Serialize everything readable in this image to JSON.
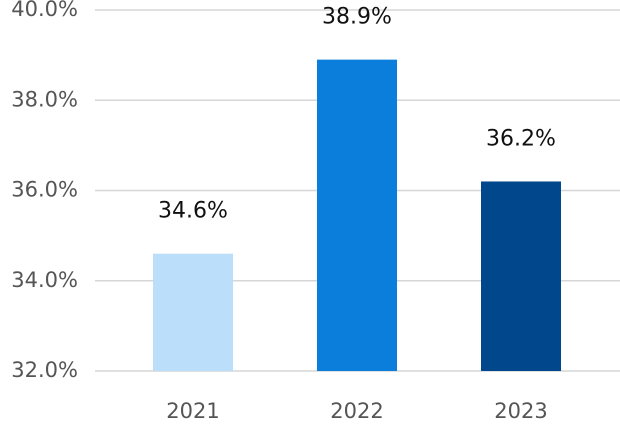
{
  "chart_data": {
    "type": "bar",
    "categories": [
      "2021",
      "2022",
      "2023"
    ],
    "values": [
      34.6,
      38.9,
      36.2
    ],
    "value_labels": [
      "34.6%",
      "38.9%",
      "36.2%"
    ],
    "colors": [
      "#bbdefb",
      "#0b7dda",
      "#00478c"
    ],
    "ylim": [
      32,
      40
    ],
    "yticks": [
      {
        "value": 32,
        "label": "32.0%"
      },
      {
        "value": 34,
        "label": "34.0%"
      },
      {
        "value": 36,
        "label": "36.0%"
      },
      {
        "value": 38,
        "label": "38.0%"
      },
      {
        "value": 40,
        "label": "40.0%"
      }
    ],
    "grid": true
  }
}
